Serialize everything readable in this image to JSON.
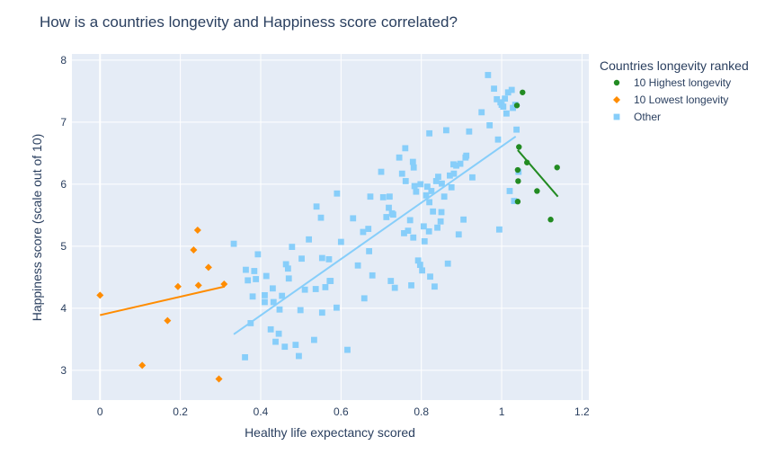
{
  "chart_data": {
    "type": "scatter",
    "title": "How is a countries longevity and Happiness score correlated?",
    "xlabel": "Healthy life expectancy scored",
    "ylabel": "Happiness score (scale out of 10)",
    "xlim": [
      -0.07,
      1.217
    ],
    "ylim": [
      2.52,
      8.1
    ],
    "xticks": [
      0,
      0.2,
      0.4,
      0.6,
      0.8,
      1,
      1.2
    ],
    "xtick_labels": [
      "0",
      "0.2",
      "0.4",
      "0.6",
      "0.8",
      "1",
      "1.2"
    ],
    "yticks": [
      3,
      4,
      5,
      6,
      7,
      8
    ],
    "ytick_labels": [
      "3",
      "4",
      "5",
      "6",
      "7",
      "8"
    ],
    "grid": true,
    "legend": {
      "title": "Countries longevity ranked",
      "position": "top-right"
    },
    "series": [
      {
        "name": "10 Highest longevity",
        "color": "#228b22",
        "marker": "circle",
        "x": [
          1.052,
          1.038,
          1.043,
          1.063,
          1.138,
          1.04,
          1.041,
          1.088,
          1.04,
          1.122
        ],
        "y": [
          7.48,
          7.27,
          6.6,
          6.35,
          6.27,
          6.23,
          6.05,
          5.89,
          5.72,
          5.43
        ],
        "trendline": [
          [
            1.04,
            6.55
          ],
          [
            1.14,
            5.8
          ]
        ]
      },
      {
        "name": "10 Lowest longevity",
        "color": "#ff8c00",
        "marker": "diamond",
        "x": [
          0.0,
          0.105,
          0.168,
          0.194,
          0.233,
          0.245,
          0.243,
          0.27,
          0.296,
          0.309
        ],
        "y": [
          4.21,
          3.08,
          3.8,
          4.35,
          4.94,
          4.37,
          5.26,
          4.66,
          2.86,
          4.39
        ],
        "trendline": [
          [
            0.0,
            3.89
          ],
          [
            0.31,
            4.35
          ]
        ]
      },
      {
        "name": "Other",
        "color": "#87cefa",
        "marker": "square",
        "x": [
          0.333,
          0.361,
          0.363,
          0.368,
          0.375,
          0.384,
          0.388,
          0.393,
          0.41,
          0.414,
          0.425,
          0.432,
          0.437,
          0.447,
          0.445,
          0.453,
          0.46,
          0.463,
          0.468,
          0.478,
          0.487,
          0.495,
          0.499,
          0.502,
          0.51,
          0.533,
          0.537,
          0.539,
          0.553,
          0.553,
          0.561,
          0.57,
          0.572,
          0.574,
          0.589,
          0.6,
          0.616,
          0.642,
          0.658,
          0.655,
          0.668,
          0.67,
          0.673,
          0.678,
          0.705,
          0.713,
          0.719,
          0.721,
          0.724,
          0.727,
          0.734,
          0.745,
          0.752,
          0.757,
          0.761,
          0.767,
          0.772,
          0.775,
          0.779,
          0.781,
          0.783,
          0.787,
          0.792,
          0.797,
          0.798,
          0.802,
          0.806,
          0.808,
          0.812,
          0.815,
          0.819,
          0.82,
          0.822,
          0.825,
          0.829,
          0.833,
          0.837,
          0.842,
          0.848,
          0.851,
          0.857,
          0.862,
          0.866,
          0.871,
          0.875,
          0.881,
          0.887,
          0.893,
          0.897,
          0.905,
          0.912,
          0.919,
          0.927,
          0.95,
          0.966,
          0.97,
          0.981,
          0.988,
          0.991,
          0.994,
          0.997,
          1.0,
          1.004,
          1.008,
          1.012,
          1.016,
          1.02,
          1.025,
          1.028,
          1.031,
          1.034,
          1.037,
          1.042,
          0.82,
          0.84,
          0.85,
          0.78,
          0.7,
          0.73,
          0.88,
          0.91,
          0.76,
          0.63,
          0.59,
          0.55,
          0.52,
          0.47,
          0.43,
          0.41,
          0.38
        ],
        "y": [
          5.04,
          3.21,
          4.62,
          4.45,
          3.76,
          4.6,
          4.47,
          4.87,
          4.1,
          4.52,
          3.66,
          4.1,
          3.46,
          3.98,
          3.59,
          4.2,
          3.38,
          4.71,
          4.64,
          4.99,
          3.41,
          3.23,
          3.97,
          4.8,
          4.3,
          3.49,
          4.31,
          5.64,
          3.93,
          4.81,
          4.34,
          4.79,
          4.44,
          4.44,
          4.01,
          5.07,
          3.33,
          4.69,
          4.16,
          5.23,
          5.28,
          4.92,
          5.8,
          4.53,
          5.79,
          5.47,
          5.62,
          5.8,
          4.44,
          5.53,
          4.33,
          6.43,
          6.17,
          5.21,
          6.05,
          5.25,
          5.42,
          4.37,
          6.36,
          6.27,
          5.97,
          5.88,
          4.77,
          4.7,
          6.0,
          4.61,
          5.32,
          5.08,
          5.82,
          5.96,
          5.24,
          6.82,
          4.51,
          5.89,
          5.56,
          4.35,
          6.05,
          6.12,
          5.4,
          6.01,
          5.8,
          6.87,
          4.72,
          6.14,
          5.95,
          6.17,
          6.3,
          5.19,
          6.33,
          5.43,
          6.46,
          6.85,
          6.11,
          7.16,
          7.76,
          6.95,
          7.54,
          7.37,
          6.72,
          5.27,
          7.32,
          7.28,
          7.25,
          7.38,
          7.14,
          7.48,
          5.89,
          7.52,
          7.23,
          5.73,
          7.28,
          6.88,
          6.2,
          5.71,
          5.3,
          5.55,
          5.14,
          6.2,
          5.51,
          6.32,
          6.43,
          6.58,
          5.45,
          5.85,
          5.46,
          5.11,
          4.48,
          4.32,
          4.21,
          4.19
        ],
        "trendline": [
          [
            0.333,
            3.58
          ],
          [
            1.035,
            6.77
          ]
        ]
      }
    ]
  }
}
